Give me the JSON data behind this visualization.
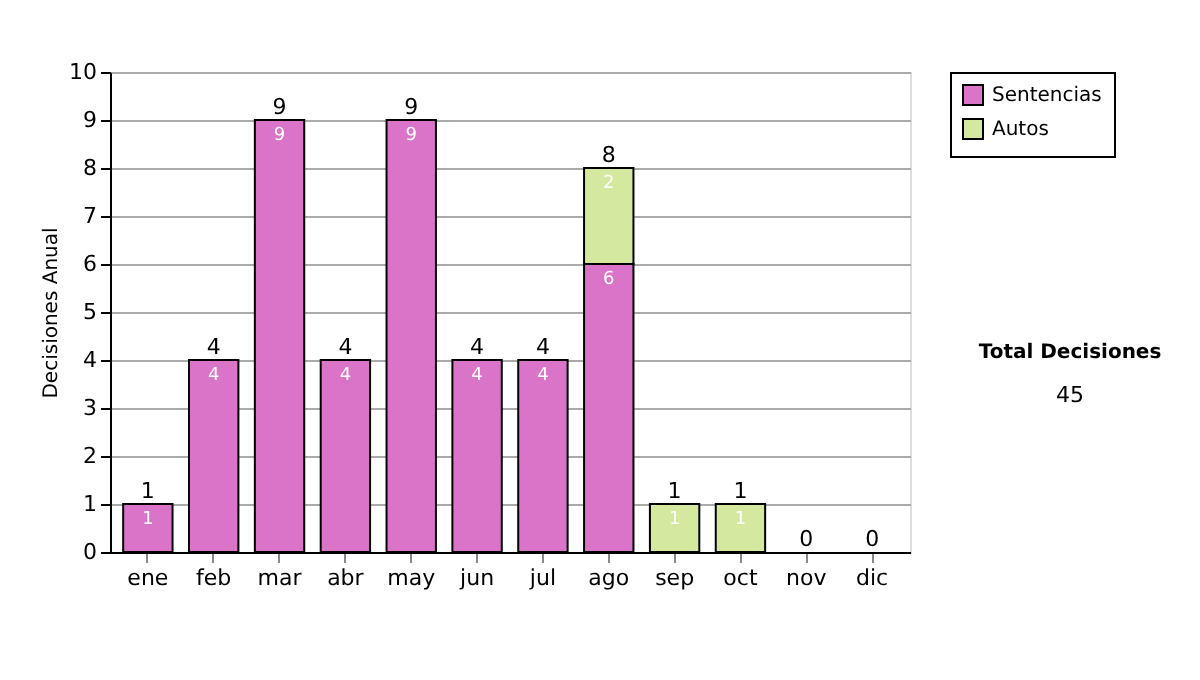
{
  "chart_data": {
    "type": "bar",
    "stacked": true,
    "ylabel": "Decisiones Anual",
    "categories": [
      "ene",
      "feb",
      "mar",
      "abr",
      "may",
      "jun",
      "jul",
      "ago",
      "sep",
      "oct",
      "nov",
      "dic"
    ],
    "series": [
      {
        "name": "Sentencias",
        "color": "#da74c8",
        "values": [
          1,
          4,
          9,
          4,
          9,
          4,
          4,
          6,
          0,
          0,
          0,
          0
        ],
        "value_labels": [
          "1",
          "4",
          "9",
          "4",
          "9",
          "4",
          "4",
          "6",
          null,
          null,
          null,
          null
        ]
      },
      {
        "name": "Autos",
        "color": "#d4e8a0",
        "values": [
          0,
          0,
          0,
          0,
          0,
          0,
          0,
          2,
          1,
          1,
          0,
          0
        ],
        "value_labels": [
          null,
          null,
          null,
          null,
          null,
          null,
          null,
          "2",
          "1",
          "1",
          null,
          null
        ]
      }
    ],
    "totals": [
      "1",
      "4",
      "9",
      "4",
      "9",
      "4",
      "4",
      "8",
      "1",
      "1",
      "0",
      "0"
    ],
    "ylim": [
      0,
      10
    ],
    "yticks": [
      0,
      1,
      2,
      3,
      4,
      5,
      6,
      7,
      8,
      9,
      10
    ],
    "grid": "y",
    "legend": "right",
    "annotations": [
      "Total Decisiones",
      "45"
    ]
  }
}
